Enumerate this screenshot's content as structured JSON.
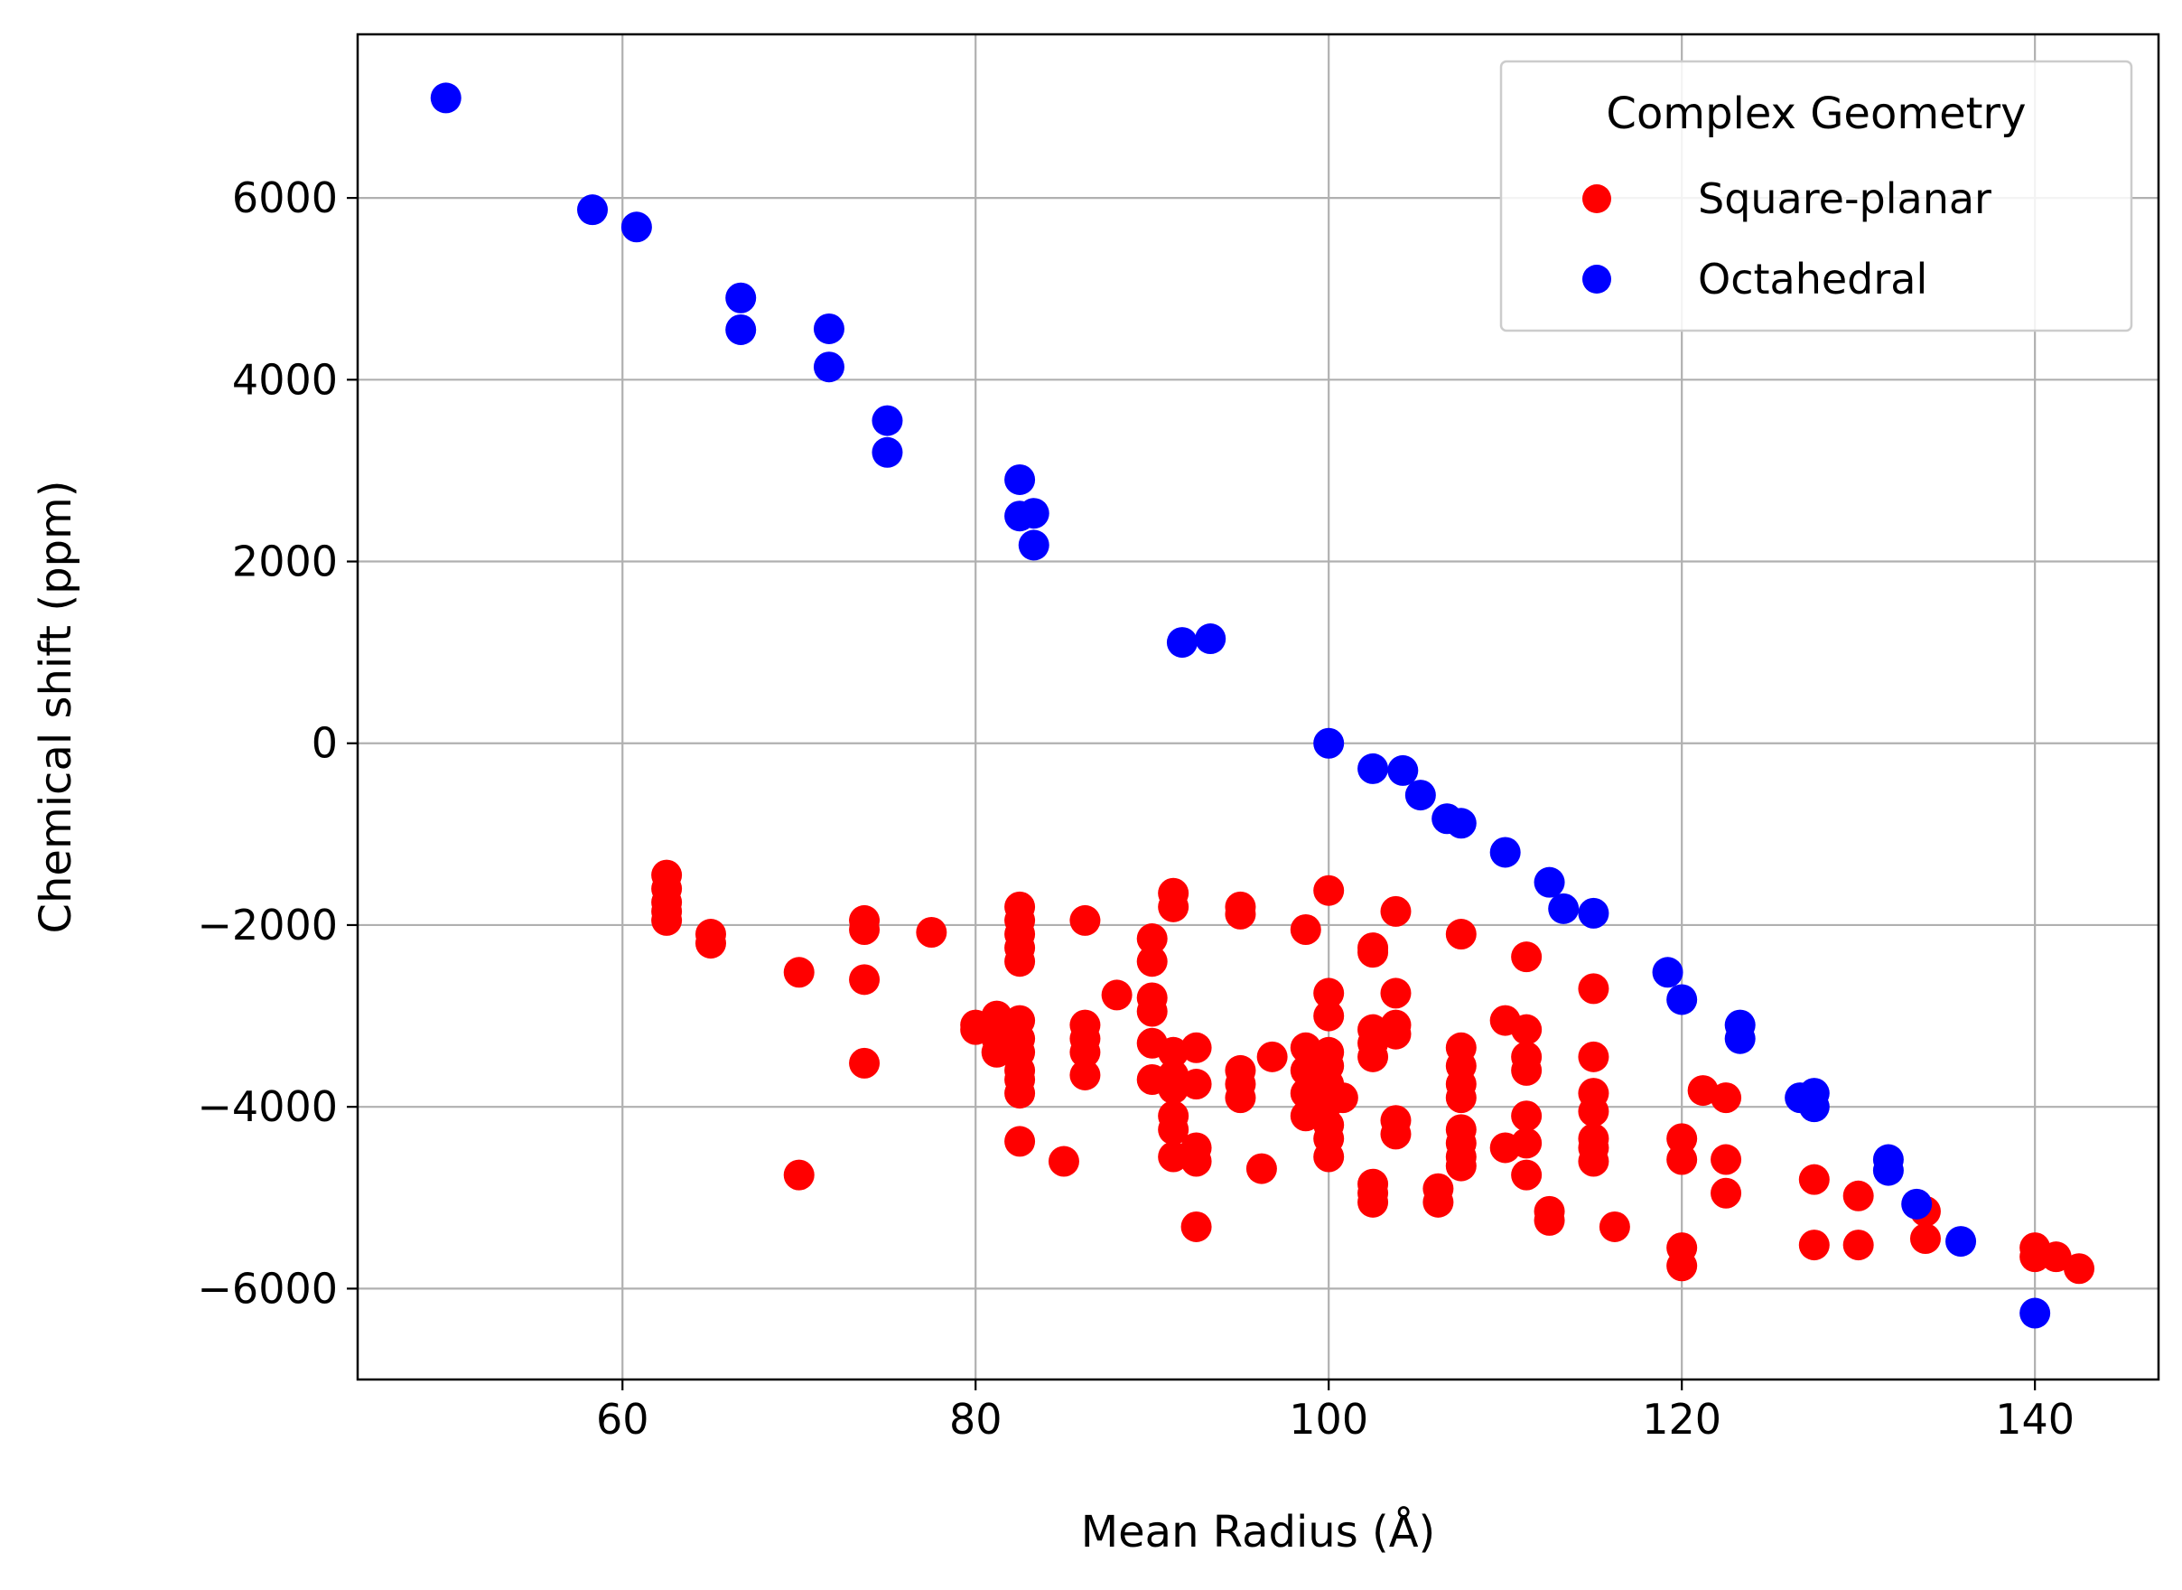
{
  "chart_data": {
    "type": "scatter",
    "title": "",
    "xlabel": "Mean Radius (Å)",
    "ylabel": "Chemical shift (ppm)",
    "xlim": [
      45,
      147
    ],
    "ylim": [
      -7000,
      7800
    ],
    "xticks": [
      60,
      80,
      100,
      120,
      140
    ],
    "yticks": [
      -6000,
      -4000,
      -2000,
      0,
      2000,
      4000,
      6000
    ],
    "xtick_labels": [
      "60",
      "80",
      "100",
      "120",
      "140"
    ],
    "ytick_labels": [
      "−6000",
      "−4000",
      "−2000",
      "0",
      "2000",
      "4000",
      "6000"
    ],
    "grid": true,
    "legend": {
      "title": "Complex Geometry",
      "placement": "top-right"
    },
    "series": [
      {
        "name": "Square-planar",
        "color": "#ff0000",
        "points": [
          [
            62.5,
            -1450
          ],
          [
            62.5,
            -1600
          ],
          [
            62.5,
            -1750
          ],
          [
            62.5,
            -1850
          ],
          [
            62.5,
            -1950
          ],
          [
            65,
            -2100
          ],
          [
            65,
            -2200
          ],
          [
            70,
            -2520
          ],
          [
            70,
            -4750
          ],
          [
            73.7,
            -1950
          ],
          [
            73.7,
            -2050
          ],
          [
            73.7,
            -2600
          ],
          [
            73.7,
            -3520
          ],
          [
            77.5,
            -2080
          ],
          [
            80,
            -3100
          ],
          [
            80,
            -3150
          ],
          [
            81.2,
            -3000
          ],
          [
            81.2,
            -3250
          ],
          [
            81.2,
            -3400
          ],
          [
            82.5,
            -1800
          ],
          [
            82.5,
            -1950
          ],
          [
            82.5,
            -2100
          ],
          [
            82.5,
            -2250
          ],
          [
            82.5,
            -2400
          ],
          [
            82.5,
            -3050
          ],
          [
            82.5,
            -3250
          ],
          [
            82.5,
            -3400
          ],
          [
            82.5,
            -3600
          ],
          [
            82.5,
            -3700
          ],
          [
            82.5,
            -3850
          ],
          [
            82.5,
            -4380
          ],
          [
            85,
            -4600
          ],
          [
            86.2,
            -1950
          ],
          [
            86.2,
            -3100
          ],
          [
            86.2,
            -3250
          ],
          [
            86.2,
            -3400
          ],
          [
            86.2,
            -3650
          ],
          [
            88,
            -2770
          ],
          [
            90,
            -2150
          ],
          [
            90,
            -2400
          ],
          [
            90,
            -2800
          ],
          [
            90,
            -2950
          ],
          [
            90,
            -3300
          ],
          [
            90,
            -3700
          ],
          [
            91.2,
            -1650
          ],
          [
            91.2,
            -1800
          ],
          [
            91.2,
            -3400
          ],
          [
            91.2,
            -3650
          ],
          [
            91.2,
            -3800
          ],
          [
            91.2,
            -4100
          ],
          [
            91.2,
            -4250
          ],
          [
            91.2,
            -4550
          ],
          [
            92.5,
            -3350
          ],
          [
            92.5,
            -3750
          ],
          [
            92.5,
            -4450
          ],
          [
            92.5,
            -4600
          ],
          [
            92.5,
            -5320
          ],
          [
            95,
            -1800
          ],
          [
            95,
            -1880
          ],
          [
            95,
            -3600
          ],
          [
            95,
            -3750
          ],
          [
            95,
            -3900
          ],
          [
            96.2,
            -4680
          ],
          [
            96.8,
            -3450
          ],
          [
            98.7,
            -2050
          ],
          [
            98.7,
            -3350
          ],
          [
            98.7,
            -3600
          ],
          [
            98.7,
            -3850
          ],
          [
            98.7,
            -4100
          ],
          [
            100,
            -1620
          ],
          [
            100,
            -2750
          ],
          [
            100,
            -3000
          ],
          [
            100,
            -3400
          ],
          [
            100,
            -3550
          ],
          [
            100,
            -3750
          ],
          [
            100,
            -3950
          ],
          [
            100,
            -4200
          ],
          [
            100,
            -4350
          ],
          [
            100,
            -4550
          ],
          [
            100.8,
            -3900
          ],
          [
            102.5,
            -2250
          ],
          [
            102.5,
            -2300
          ],
          [
            102.5,
            -3150
          ],
          [
            102.5,
            -3300
          ],
          [
            102.5,
            -3450
          ],
          [
            102.5,
            -4850
          ],
          [
            102.5,
            -4950
          ],
          [
            102.5,
            -5050
          ],
          [
            103.8,
            -1850
          ],
          [
            103.8,
            -2750
          ],
          [
            103.8,
            -3100
          ],
          [
            103.8,
            -3200
          ],
          [
            103.8,
            -4150
          ],
          [
            103.8,
            -4300
          ],
          [
            106.2,
            -4900
          ],
          [
            106.2,
            -5050
          ],
          [
            107.5,
            -2100
          ],
          [
            107.5,
            -3350
          ],
          [
            107.5,
            -3550
          ],
          [
            107.5,
            -3750
          ],
          [
            107.5,
            -3900
          ],
          [
            107.5,
            -4250
          ],
          [
            107.5,
            -4400
          ],
          [
            107.5,
            -4550
          ],
          [
            107.5,
            -4650
          ],
          [
            110,
            -3050
          ],
          [
            110,
            -4450
          ],
          [
            111.2,
            -2350
          ],
          [
            111.2,
            -3150
          ],
          [
            111.2,
            -3450
          ],
          [
            111.2,
            -3600
          ],
          [
            111.2,
            -4100
          ],
          [
            111.2,
            -4400
          ],
          [
            111.2,
            -4750
          ],
          [
            112.5,
            -5150
          ],
          [
            112.5,
            -5250
          ],
          [
            115,
            -2700
          ],
          [
            115,
            -3450
          ],
          [
            115,
            -3850
          ],
          [
            115,
            -4050
          ],
          [
            115,
            -4350
          ],
          [
            115,
            -4450
          ],
          [
            115,
            -4600
          ],
          [
            116.2,
            -5320
          ],
          [
            120,
            -4350
          ],
          [
            120,
            -4580
          ],
          [
            120,
            -5550
          ],
          [
            120,
            -5750
          ],
          [
            121.2,
            -3820
          ],
          [
            122.5,
            -3900
          ],
          [
            122.5,
            -4580
          ],
          [
            122.5,
            -4950
          ],
          [
            127.5,
            -4800
          ],
          [
            127.5,
            -5520
          ],
          [
            130,
            -4980
          ],
          [
            130,
            -5520
          ],
          [
            133.8,
            -5150
          ],
          [
            133.8,
            -5450
          ],
          [
            140,
            -5550
          ],
          [
            140,
            -5650
          ],
          [
            141.2,
            -5650
          ],
          [
            142.5,
            -5780
          ]
        ]
      },
      {
        "name": "Octahedral",
        "color": "#0000ff",
        "points": [
          [
            50,
            7100
          ],
          [
            58.3,
            5870
          ],
          [
            60.8,
            5680
          ],
          [
            66.7,
            4900
          ],
          [
            66.7,
            4550
          ],
          [
            71.7,
            4560
          ],
          [
            71.7,
            4140
          ],
          [
            75,
            3550
          ],
          [
            75,
            3200
          ],
          [
            82.5,
            2900
          ],
          [
            82.5,
            2500
          ],
          [
            83.3,
            2530
          ],
          [
            83.3,
            2180
          ],
          [
            91.7,
            1110
          ],
          [
            93.3,
            1150
          ],
          [
            100,
            0
          ],
          [
            102.5,
            -280
          ],
          [
            104.2,
            -300
          ],
          [
            105.2,
            -570
          ],
          [
            106.7,
            -830
          ],
          [
            107.5,
            -880
          ],
          [
            110,
            -1200
          ],
          [
            112.5,
            -1530
          ],
          [
            113.3,
            -1820
          ],
          [
            115,
            -1870
          ],
          [
            119.2,
            -2520
          ],
          [
            120,
            -2820
          ],
          [
            123.3,
            -3100
          ],
          [
            123.3,
            -3250
          ],
          [
            126.7,
            -3900
          ],
          [
            127.5,
            -3850
          ],
          [
            127.5,
            -4000
          ],
          [
            131.7,
            -4580
          ],
          [
            131.7,
            -4700
          ],
          [
            133.3,
            -5070
          ],
          [
            135.8,
            -5480
          ],
          [
            140,
            -6270
          ]
        ]
      }
    ]
  }
}
